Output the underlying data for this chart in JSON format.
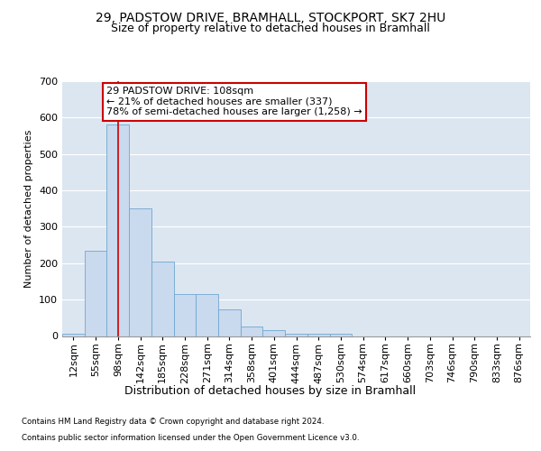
{
  "title1": "29, PADSTOW DRIVE, BRAMHALL, STOCKPORT, SK7 2HU",
  "title2": "Size of property relative to detached houses in Bramhall",
  "xlabel": "Distribution of detached houses by size in Bramhall",
  "ylabel": "Number of detached properties",
  "footnote1": "Contains HM Land Registry data © Crown copyright and database right 2024.",
  "footnote2": "Contains public sector information licensed under the Open Government Licence v3.0.",
  "bin_labels": [
    "12sqm",
    "55sqm",
    "98sqm",
    "142sqm",
    "185sqm",
    "228sqm",
    "271sqm",
    "314sqm",
    "358sqm",
    "401sqm",
    "444sqm",
    "487sqm",
    "530sqm",
    "574sqm",
    "617sqm",
    "660sqm",
    "703sqm",
    "746sqm",
    "790sqm",
    "833sqm",
    "876sqm"
  ],
  "bar_values": [
    5,
    235,
    580,
    350,
    205,
    115,
    115,
    72,
    27,
    15,
    5,
    5,
    5,
    0,
    0,
    0,
    0,
    0,
    0,
    0,
    0
  ],
  "bar_color": "#c9d9ee",
  "bar_edge_color": "#6fa8d0",
  "red_line_bin": 2,
  "red_line_color": "#cc0000",
  "annotation_text": "29 PADSTOW DRIVE: 108sqm\n← 21% of detached houses are smaller (337)\n78% of semi-detached houses are larger (1,258) →",
  "annotation_box_color": "#ffffff",
  "annotation_box_edge": "#cc0000",
  "ylim": [
    0,
    700
  ],
  "yticks": [
    0,
    100,
    200,
    300,
    400,
    500,
    600,
    700
  ],
  "bg_color": "#dce6f1",
  "fig_bg_color": "#ffffff",
  "title1_fontsize": 10,
  "title2_fontsize": 9,
  "xlabel_fontsize": 9,
  "ylabel_fontsize": 8,
  "tick_fontsize": 8,
  "annot_fontsize": 8
}
